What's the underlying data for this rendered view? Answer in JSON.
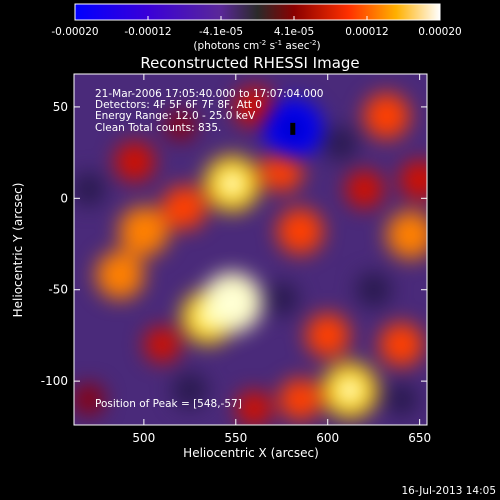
{
  "chart_data": {
    "type": "heatmap",
    "title": "Reconstructed RHESSI Image",
    "xlabel": "Heliocentric X (arcsec)",
    "ylabel": "Heliocentric Y (arcsec)",
    "xlim": [
      462,
      654
    ],
    "ylim": [
      -124,
      68
    ],
    "x_ticks": [
      500,
      550,
      600,
      650
    ],
    "y_ticks": [
      50,
      0,
      -50,
      -100
    ],
    "colorbar": {
      "vmin": -0.0002,
      "vmax": 0.0002,
      "ticks": [
        "-0.00020",
        "-0.00012",
        "-4.1e-05",
        "4.1e-05",
        "0.00012",
        "0.00020"
      ],
      "units_prefix": "(photons cm",
      "units_exp1": "-2",
      "units_mid": " s",
      "units_exp2": "-1",
      "units_mid2": " asec",
      "units_exp3": "-2",
      "units_suffix": ")"
    },
    "info_lines": [
      "21-Mar-2006 17:05:40.000 to 17:07:04.000",
      "Detectors: 4F 5F 6F 7F 8F, Att 0",
      "Energy Range: 12.0 - 25.0 keV",
      "Clean     Total counts: 835."
    ],
    "peak_label": "Position of Peak = [548,-57]",
    "timestamp": "16-Jul-2013 14:05",
    "sources": [
      {
        "x": 548,
        "y": -57,
        "value": 0.0002
      },
      {
        "x": 548,
        "y": 8,
        "value": 0.00018
      },
      {
        "x": 535,
        "y": -65,
        "value": 0.00017
      },
      {
        "x": 612,
        "y": -105,
        "value": 0.00018
      },
      {
        "x": 500,
        "y": -18,
        "value": 0.00015
      },
      {
        "x": 487,
        "y": -42,
        "value": 0.00014
      },
      {
        "x": 585,
        "y": -18,
        "value": 0.00013
      },
      {
        "x": 645,
        "y": -20,
        "value": 0.00014
      },
      {
        "x": 632,
        "y": 45,
        "value": 0.00013
      },
      {
        "x": 560,
        "y": 50,
        "value": 0.0001
      },
      {
        "x": 495,
        "y": 20,
        "value": 0.0001
      },
      {
        "x": 522,
        "y": -5,
        "value": 0.00012
      },
      {
        "x": 575,
        "y": 15,
        "value": 0.00011
      },
      {
        "x": 640,
        "y": -80,
        "value": 0.00012
      },
      {
        "x": 650,
        "y": 10,
        "value": 0.0001
      },
      {
        "x": 585,
        "y": -110,
        "value": 0.00011
      },
      {
        "x": 600,
        "y": -75,
        "value": 0.00012
      },
      {
        "x": 560,
        "y": -115,
        "value": 8e-05
      },
      {
        "x": 510,
        "y": -80,
        "value": 8e-05
      },
      {
        "x": 620,
        "y": 5,
        "value": 9e-05
      },
      {
        "x": 470,
        "y": -110,
        "value": 6e-05
      },
      {
        "x": 520,
        "y": 40,
        "value": 5e-05
      },
      {
        "x": 581,
        "y": 38,
        "value": -0.0002
      },
      {
        "x": 625,
        "y": -50,
        "value": -8e-05
      },
      {
        "x": 575,
        "y": -55,
        "value": -7e-05
      },
      {
        "x": 525,
        "y": -105,
        "value": -8e-05
      },
      {
        "x": 640,
        "y": -110,
        "value": -7e-05
      },
      {
        "x": 470,
        "y": 5,
        "value": -7e-05
      },
      {
        "x": 607,
        "y": 30,
        "value": -7e-05
      }
    ]
  }
}
